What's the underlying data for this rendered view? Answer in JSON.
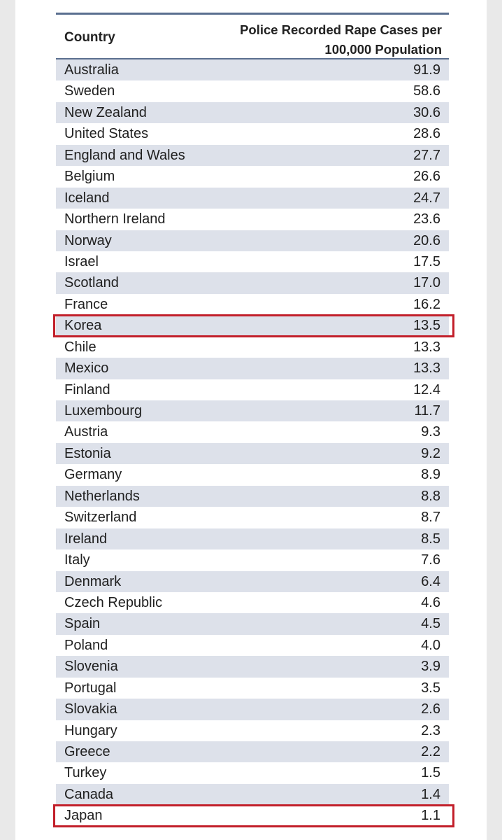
{
  "table": {
    "header": {
      "country": "Country",
      "value_line1": "Police Recorded Rape Cases per",
      "value_line2": "100,000 Population"
    },
    "rows": [
      {
        "country": "Australia",
        "value": "91.9"
      },
      {
        "country": "Sweden",
        "value": "58.6"
      },
      {
        "country": "New Zealand",
        "value": "30.6"
      },
      {
        "country": "United States",
        "value": "28.6"
      },
      {
        "country": "England and Wales",
        "value": "27.7"
      },
      {
        "country": "Belgium",
        "value": "26.6"
      },
      {
        "country": "Iceland",
        "value": "24.7"
      },
      {
        "country": "Northern Ireland",
        "value": "23.6"
      },
      {
        "country": "Norway",
        "value": "20.6"
      },
      {
        "country": "Israel",
        "value": "17.5"
      },
      {
        "country": "Scotland",
        "value": "17.0"
      },
      {
        "country": "France",
        "value": "16.2"
      },
      {
        "country": "Korea",
        "value": "13.5",
        "highlighted": true
      },
      {
        "country": "Chile",
        "value": "13.3"
      },
      {
        "country": "Mexico",
        "value": "13.3"
      },
      {
        "country": "Finland",
        "value": "12.4"
      },
      {
        "country": "Luxembourg",
        "value": "11.7"
      },
      {
        "country": "Austria",
        "value": "9.3"
      },
      {
        "country": "Estonia",
        "value": "9.2"
      },
      {
        "country": "Germany",
        "value": "8.9"
      },
      {
        "country": "Netherlands",
        "value": "8.8"
      },
      {
        "country": "Switzerland",
        "value": "8.7"
      },
      {
        "country": "Ireland",
        "value": "8.5"
      },
      {
        "country": "Italy",
        "value": "7.6"
      },
      {
        "country": "Denmark",
        "value": "6.4"
      },
      {
        "country": "Czech Republic",
        "value": "4.6"
      },
      {
        "country": "Spain",
        "value": "4.5"
      },
      {
        "country": "Poland",
        "value": "4.0"
      },
      {
        "country": "Slovenia",
        "value": "3.9"
      },
      {
        "country": "Portugal",
        "value": "3.5"
      },
      {
        "country": "Slovakia",
        "value": "2.6"
      },
      {
        "country": "Hungary",
        "value": "2.3"
      },
      {
        "country": "Greece",
        "value": "2.2"
      },
      {
        "country": "Turkey",
        "value": "1.5"
      },
      {
        "country": "Canada",
        "value": "1.4"
      },
      {
        "country": "Japan",
        "value": "1.1",
        "highlighted": true
      }
    ]
  },
  "colors": {
    "alt_row": "#dde1ea",
    "rule": "#5a6f8f",
    "highlight": "#c21f2a"
  }
}
